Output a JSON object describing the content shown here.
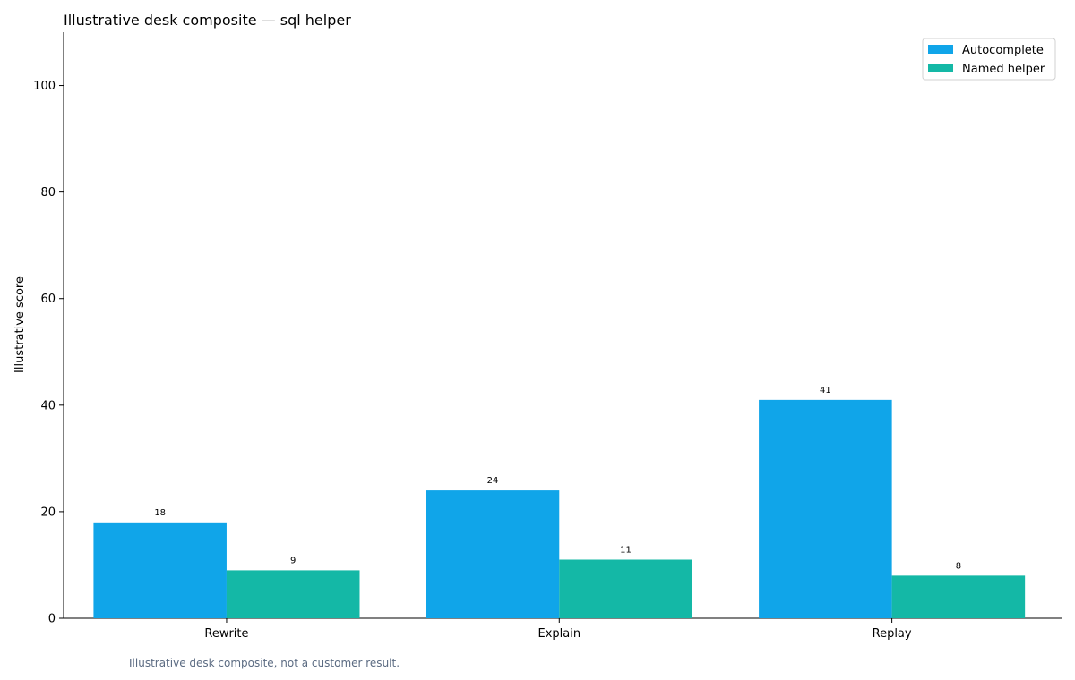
{
  "chart_data": {
    "type": "bar",
    "title": "Illustrative desk composite — sql helper",
    "xlabel": "",
    "ylabel": "Illustrative score",
    "categories": [
      "Rewrite",
      "Explain",
      "Replay"
    ],
    "series": [
      {
        "name": "Autocomplete",
        "values": [
          18,
          24,
          41
        ],
        "color": "#10a5e9"
      },
      {
        "name": "Named helper",
        "values": [
          9,
          11,
          8
        ],
        "color": "#14b8a6"
      }
    ],
    "ylim": [
      0,
      110
    ],
    "yticks": [
      0,
      20,
      40,
      60,
      80,
      100
    ],
    "grid": false,
    "legend_position": "top-right",
    "data_labels": true
  },
  "footnote": "Illustrative desk composite, not a customer result."
}
